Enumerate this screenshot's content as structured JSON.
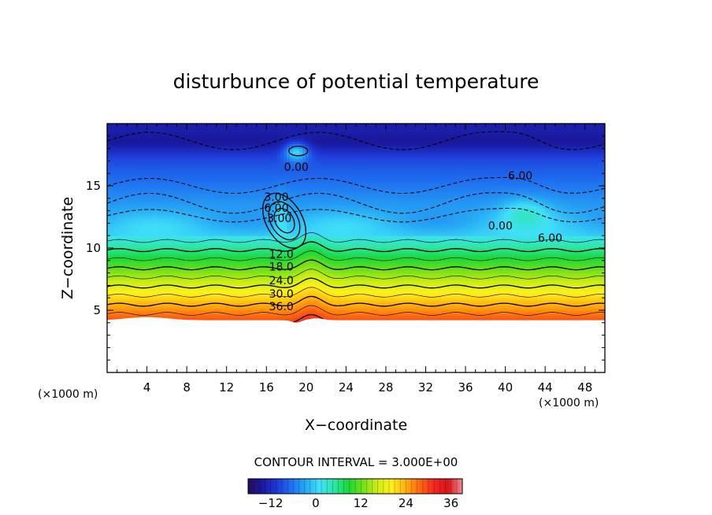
{
  "chart_data": {
    "type": "contour",
    "title": "disturbunce of potential temperature",
    "xlabel": "X−coordinate",
    "ylabel": "Z−coordinate",
    "x_unit": "(×1000 m)",
    "y_unit": "(×1000 m)",
    "xlim": [
      0,
      50
    ],
    "ylim": [
      0,
      20
    ],
    "x_ticks": [
      4,
      8,
      12,
      16,
      20,
      24,
      28,
      32,
      36,
      40,
      44,
      48
    ],
    "y_ticks": [
      5,
      10,
      15
    ],
    "contour_interval_text": "CONTOUR INTERVAL = 3.000E+00",
    "contour_interval": 3,
    "value_range": [
      -18,
      39
    ],
    "terrain_height": 4.2,
    "contour_labels": [
      {
        "text": "36.0",
        "x": 17.5,
        "z": 5.0
      },
      {
        "text": "30.0",
        "x": 17.5,
        "z": 6.0
      },
      {
        "text": "24.0",
        "x": 17.5,
        "z": 7.1
      },
      {
        "text": "18.0",
        "x": 17.5,
        "z": 8.2
      },
      {
        "text": "12.0",
        "x": 17.5,
        "z": 9.2
      },
      {
        "text": "0.00",
        "x": 39.5,
        "z": 11.5
      },
      {
        "text": "6.00",
        "x": 44.5,
        "z": 10.5
      },
      {
        "text": "6.00",
        "x": 41.5,
        "z": 15.5
      },
      {
        "text": "0.00",
        "x": 19.0,
        "z": 16.2
      },
      {
        "text": "3.00",
        "x": 17.0,
        "z": 13.8
      },
      {
        "text": "6.00",
        "x": 17.0,
        "z": 12.9
      },
      {
        "text": "3.00",
        "x": 17.3,
        "z": 12.1
      }
    ],
    "colorbar": {
      "ticks": [
        -12,
        0,
        12,
        24,
        36
      ],
      "min": -18,
      "max": 39,
      "colors": [
        "#2a0a5e",
        "#1a1aa0",
        "#1e3ad8",
        "#1f6ff0",
        "#27a8f5",
        "#3fe0f8",
        "#2ee6a6",
        "#19d83a",
        "#6fe01a",
        "#c9ec14",
        "#fff01c",
        "#ffb30f",
        "#ff6a10",
        "#f2281e",
        "#d9161a",
        "#f08a96"
      ]
    }
  }
}
